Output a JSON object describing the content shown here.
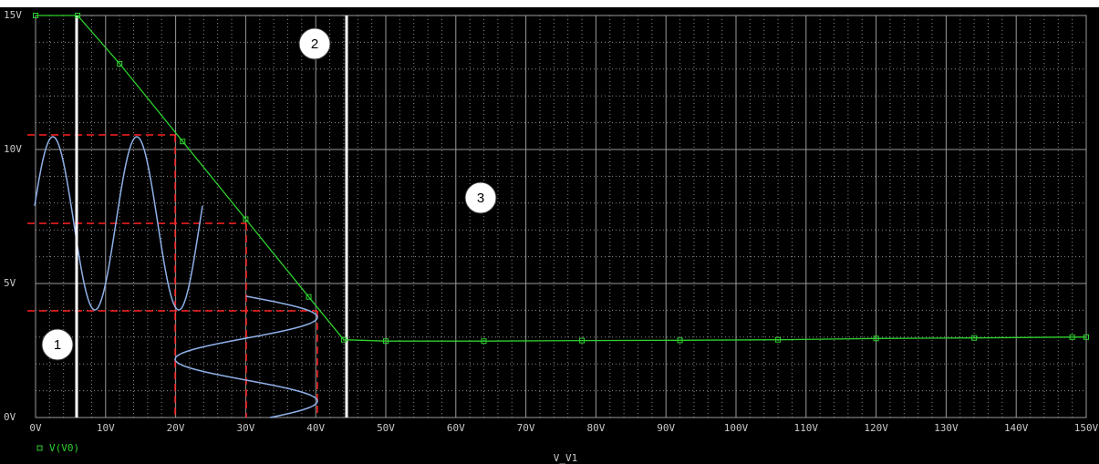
{
  "chart_data": {
    "type": "line",
    "x_label": "V_V1",
    "x": [
      0,
      6,
      12,
      21,
      30,
      39,
      44,
      50,
      64,
      78,
      92,
      106,
      120,
      134,
      148,
      150
    ],
    "series": [
      {
        "name": "V(V0)",
        "color": "#2ed02e",
        "values": [
          15,
          15,
          13.2,
          10.3,
          7.4,
          4.5,
          2.9,
          2.85,
          2.85,
          2.87,
          2.88,
          2.9,
          2.95,
          2.97,
          3.0,
          3.0
        ]
      }
    ],
    "xlim": [
      0,
      150
    ],
    "xticks": [
      {
        "value": 0,
        "label": "0V"
      },
      {
        "value": 10,
        "label": "10V"
      },
      {
        "value": 20,
        "label": "20V"
      },
      {
        "value": 30,
        "label": "30V"
      },
      {
        "value": 40,
        "label": "40V"
      },
      {
        "value": 50,
        "label": "50V"
      },
      {
        "value": 60,
        "label": "60V"
      },
      {
        "value": 70,
        "label": "70V"
      },
      {
        "value": 80,
        "label": "80V"
      },
      {
        "value": 90,
        "label": "90V"
      },
      {
        "value": 100,
        "label": "100V"
      },
      {
        "value": 110,
        "label": "110V"
      },
      {
        "value": 120,
        "label": "120V"
      },
      {
        "value": 130,
        "label": "130V"
      },
      {
        "value": 140,
        "label": "140V"
      },
      {
        "value": 150,
        "label": "150V"
      }
    ],
    "ylim": [
      0,
      15
    ],
    "yticks": [
      {
        "value": 0,
        "label": "0V"
      },
      {
        "value": 5,
        "label": "5V"
      },
      {
        "value": 10,
        "label": "10V"
      },
      {
        "value": 15,
        "label": "15V"
      }
    ],
    "grid": true,
    "annotations": [
      "1",
      "2",
      "3"
    ]
  }
}
